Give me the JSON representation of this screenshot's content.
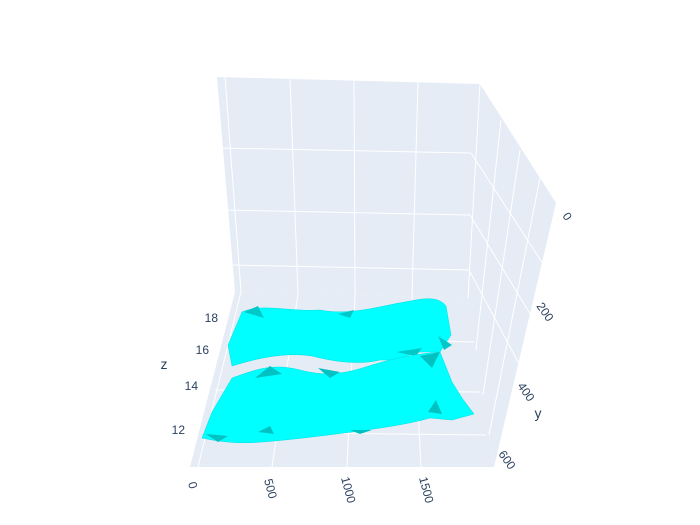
{
  "chart_data": {
    "type": "isosurface",
    "title": "",
    "axes": {
      "x": {
        "title": "",
        "ticks": [
          "0",
          "500",
          "1000",
          "1500"
        ]
      },
      "y": {
        "title": "y",
        "ticks": [
          "0",
          "200",
          "400",
          "600"
        ]
      },
      "z": {
        "title": "z",
        "ticks": [
          "12",
          "14",
          "16",
          "18"
        ]
      }
    },
    "series": [
      {
        "surface": "upper band",
        "z_range": [
          15.5,
          18.8
        ]
      },
      {
        "surface": "lower band",
        "z_range": [
          11.5,
          15
        ]
      }
    ],
    "colors": {
      "surface": "#00ffff",
      "surface_shade": "#00c2c2",
      "background": "#e5ecf6",
      "grid": "#ffffff",
      "tick_text": "#2a3f5f"
    }
  }
}
